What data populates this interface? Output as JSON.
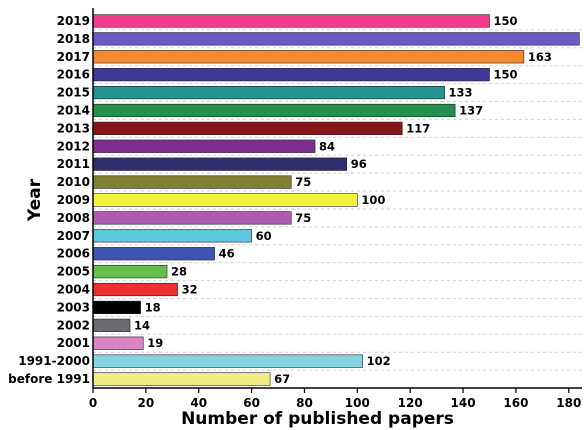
{
  "chart_data": {
    "type": "bar",
    "orientation": "horizontal",
    "title": "",
    "xlabel": "Number of published papers",
    "ylabel": "Year",
    "xlim": [
      0,
      185
    ],
    "xticks": [
      0,
      20,
      40,
      60,
      80,
      100,
      120,
      140,
      160,
      180
    ],
    "grid": "horizontal dashed",
    "categories": [
      "2019",
      "2018",
      "2017",
      "2016",
      "2015",
      "2014",
      "2013",
      "2012",
      "2011",
      "2010",
      "2009",
      "2008",
      "2007",
      "2006",
      "2005",
      "2004",
      "2003",
      "2002",
      "2001",
      "1991-2000",
      "before 1991"
    ],
    "values": [
      150,
      184,
      163,
      150,
      133,
      137,
      117,
      84,
      96,
      75,
      100,
      75,
      60,
      46,
      28,
      32,
      18,
      14,
      19,
      102,
      67
    ],
    "colors": [
      "#f03c8c",
      "#6a5bc4",
      "#f5892c",
      "#3e3796",
      "#22938f",
      "#23914c",
      "#861418",
      "#7d2e8e",
      "#302c70",
      "#808035",
      "#f2f23a",
      "#b05ab2",
      "#5ac8de",
      "#3d55b0",
      "#64c04a",
      "#ee2f2f",
      "#000000",
      "#6a6a70",
      "#d986c4",
      "#86d4e6",
      "#f2ec86"
    ]
  }
}
